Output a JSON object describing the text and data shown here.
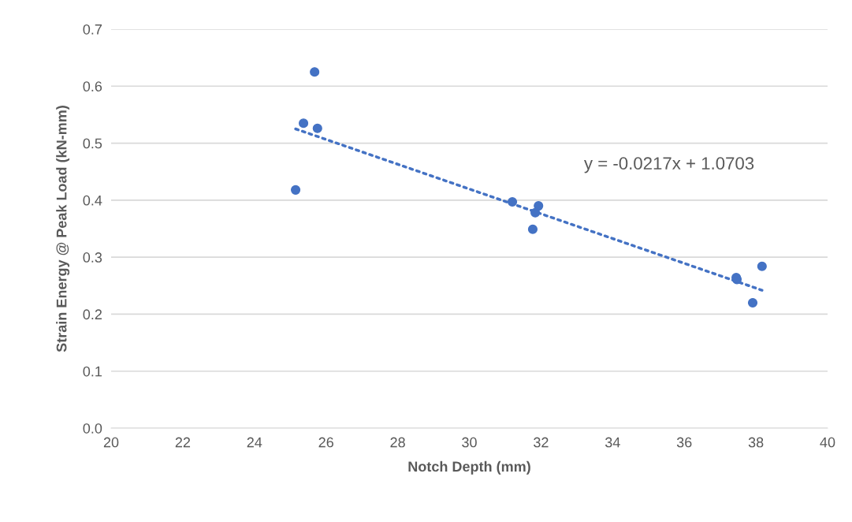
{
  "chart_data": {
    "type": "scatter",
    "xlabel": "Notch Depth (mm)",
    "ylabel": "Strain Energy @ Peak Load (kN-mm)",
    "xlim": [
      20,
      40
    ],
    "xticks": [
      20,
      22,
      24,
      26,
      28,
      30,
      32,
      34,
      36,
      38,
      40
    ],
    "ylim": [
      0,
      0.7
    ],
    "yticks": [
      {
        "value": 0,
        "label": "0.0"
      },
      0.1,
      0.2,
      0.3,
      0.4,
      0.5,
      0.6,
      0.7
    ],
    "grid": "y",
    "legend": false,
    "annotations": [
      "y = -0.0217x + 1.0703"
    ],
    "series": [
      {
        "marker": "circle",
        "color": "#4472c4",
        "x": [
          25.15,
          25.37,
          25.68,
          25.76,
          31.2,
          31.77,
          31.84,
          31.93,
          37.45,
          37.47,
          37.91,
          38.17
        ],
        "values": [
          0.418,
          0.535,
          0.625,
          0.526,
          0.397,
          0.349,
          0.378,
          0.39,
          0.264,
          0.261,
          0.22,
          0.284
        ]
      },
      {
        "type": "line",
        "marker": "none",
        "color": "#4472c4",
        "line_style": "dotted",
        "x": [
          25.15,
          38.17
        ],
        "values": [
          0.525,
          0.242
        ]
      }
    ]
  }
}
